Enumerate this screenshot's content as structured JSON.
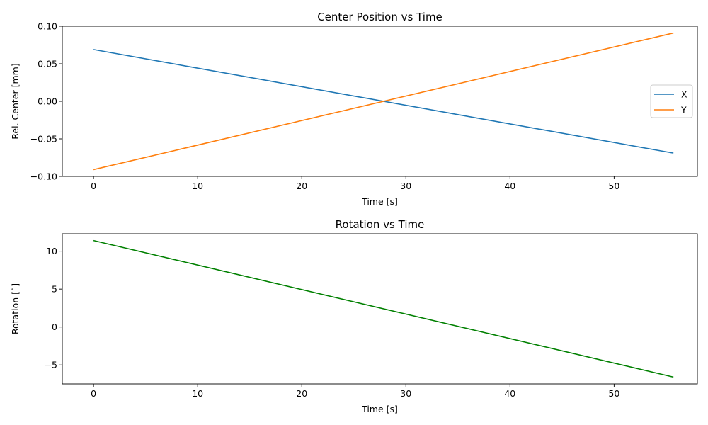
{
  "chart_data": [
    {
      "type": "line",
      "title": "Center Position vs Time",
      "xlabel": "Time [s]",
      "ylabel": "Rel. Center [mm]",
      "xlim": [
        -3,
        58
      ],
      "ylim": [
        -0.1,
        0.1
      ],
      "xticks": [
        0,
        10,
        20,
        30,
        40,
        50
      ],
      "xtick_labels": [
        "0",
        "10",
        "20",
        "30",
        "40",
        "50"
      ],
      "yticks": [
        -0.1,
        -0.05,
        0.0,
        0.05,
        0.1
      ],
      "ytick_labels": [
        "−0.10",
        "−0.05",
        "0.00",
        "0.05",
        "0.10"
      ],
      "grid": false,
      "legend": "center-right",
      "series": [
        {
          "name": "X",
          "color": "#1f77b4",
          "x": [
            0,
            55.7
          ],
          "y": [
            0.069,
            -0.069
          ]
        },
        {
          "name": "Y",
          "color": "#ff7f0e",
          "x": [
            0,
            55.7
          ],
          "y": [
            -0.091,
            0.091
          ]
        }
      ]
    },
    {
      "type": "line",
      "title": "Rotation vs Time",
      "xlabel": "Time [s]",
      "ylabel": "Rotation [˚]",
      "xlim": [
        -3,
        58
      ],
      "ylim": [
        -7.5,
        12.3
      ],
      "xticks": [
        0,
        10,
        20,
        30,
        40,
        50
      ],
      "xtick_labels": [
        "0",
        "10",
        "20",
        "30",
        "40",
        "50"
      ],
      "yticks": [
        -5,
        0,
        5,
        10
      ],
      "ytick_labels": [
        "−5",
        "0",
        "5",
        "10"
      ],
      "grid": false,
      "series": [
        {
          "color": "#008000",
          "x": [
            0,
            55.7
          ],
          "y": [
            11.4,
            -6.6
          ]
        }
      ]
    }
  ]
}
